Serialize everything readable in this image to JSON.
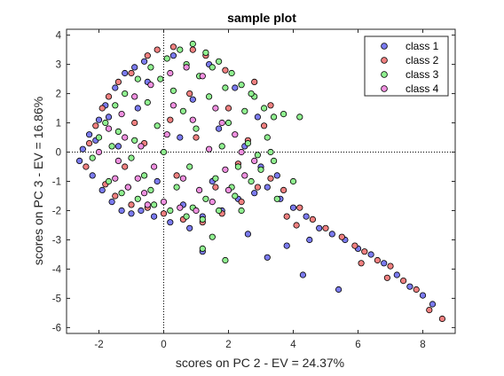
{
  "chart_data": {
    "type": "scatter",
    "title": "sample plot",
    "xlabel": "scores on PC 2 - EV = 24.37%",
    "ylabel": "scores on PC 3 - EV = 16.86%",
    "xlim": [
      -3,
      9
    ],
    "ylim": [
      -6.2,
      4.2
    ],
    "xticks": [
      -2,
      0,
      2,
      4,
      6,
      8
    ],
    "yticks": [
      4,
      3,
      2,
      1,
      0,
      -1,
      -2,
      -3,
      -4,
      -5,
      -6
    ],
    "reference_lines": {
      "x": 0,
      "y": 0,
      "style": "dotted"
    },
    "legend_position": "top-right",
    "series": [
      {
        "name": "class 1",
        "color": "#7b7bf0",
        "points": [
          [
            -2.6,
            -0.3
          ],
          [
            -2.5,
            0.1
          ],
          [
            -2.3,
            0.6
          ],
          [
            -2.2,
            -0.8
          ],
          [
            -2.0,
            1.1
          ],
          [
            -1.8,
            1.6
          ],
          [
            -1.5,
            2.2
          ],
          [
            -1.2,
            2.7
          ],
          [
            -0.9,
            2.9
          ],
          [
            -0.6,
            3.1
          ],
          [
            -1.9,
            -1.3
          ],
          [
            -1.6,
            -1.7
          ],
          [
            -1.3,
            -2.0
          ],
          [
            -1.0,
            -2.1
          ],
          [
            -0.7,
            -2.0
          ],
          [
            -0.3,
            -2.2
          ],
          [
            0.2,
            -2.4
          ],
          [
            0.8,
            -2.6
          ],
          [
            1.2,
            -2.2
          ],
          [
            1.8,
            -2.0
          ],
          [
            2.3,
            -1.6
          ],
          [
            2.8,
            -1.4
          ],
          [
            3.2,
            -1.2
          ],
          [
            3.6,
            -1.6
          ],
          [
            4.0,
            -1.9
          ],
          [
            4.4,
            -2.2
          ],
          [
            4.8,
            -2.6
          ],
          [
            5.2,
            -2.8
          ],
          [
            5.6,
            -3.0
          ],
          [
            6.0,
            -3.3
          ],
          [
            6.4,
            -3.5
          ],
          [
            6.8,
            -3.8
          ],
          [
            7.2,
            -4.2
          ],
          [
            7.6,
            -4.6
          ],
          [
            8.0,
            -4.9
          ],
          [
            8.3,
            -5.2
          ],
          [
            3.8,
            -3.2
          ],
          [
            4.5,
            -3.0
          ],
          [
            5.4,
            -4.7
          ],
          [
            4.3,
            -4.2
          ],
          [
            3.2,
            -3.6
          ],
          [
            1.2,
            -3.4
          ],
          [
            2.6,
            -2.8
          ],
          [
            1.5,
            -1.0
          ],
          [
            0.5,
            0.5
          ],
          [
            -0.8,
            1.5
          ],
          [
            -1.4,
            0.2
          ],
          [
            0.9,
            1.8
          ],
          [
            1.7,
            0.8
          ],
          [
            2.5,
            0.2
          ],
          [
            3.0,
            -0.5
          ],
          [
            -0.2,
            -1.0
          ],
          [
            -1.1,
            -1.2
          ],
          [
            2.2,
            2.2
          ],
          [
            1.4,
            3.0
          ],
          [
            0.3,
            3.3
          ],
          [
            -1.7,
            1.2
          ],
          [
            -2.1,
            0.4
          ],
          [
            3.5,
            -0.8
          ],
          [
            0.6,
            -1.8
          ],
          [
            2.9,
            1.2
          ],
          [
            -0.5,
            2.4
          ]
        ]
      },
      {
        "name": "class 2",
        "color": "#f08080",
        "points": [
          [
            -2.4,
            -0.5
          ],
          [
            -2.3,
            0.3
          ],
          [
            -2.1,
            0.9
          ],
          [
            -1.9,
            1.5
          ],
          [
            -1.7,
            1.9
          ],
          [
            -1.4,
            2.4
          ],
          [
            -1.0,
            2.7
          ],
          [
            -0.5,
            3.3
          ],
          [
            -0.2,
            3.5
          ],
          [
            0.3,
            3.6
          ],
          [
            0.9,
            3.5
          ],
          [
            1.3,
            3.3
          ],
          [
            -1.8,
            -1.1
          ],
          [
            -1.5,
            -1.5
          ],
          [
            -1.0,
            -1.8
          ],
          [
            -0.5,
            -1.9
          ],
          [
            0.0,
            -2.1
          ],
          [
            0.6,
            -2.3
          ],
          [
            1.2,
            -2.4
          ],
          [
            1.8,
            -2.1
          ],
          [
            2.4,
            -1.7
          ],
          [
            2.9,
            -1.2
          ],
          [
            3.3,
            -0.9
          ],
          [
            3.7,
            -1.3
          ],
          [
            4.2,
            -1.9
          ],
          [
            4.6,
            -2.3
          ],
          [
            5.0,
            -2.6
          ],
          [
            5.5,
            -2.9
          ],
          [
            5.9,
            -3.2
          ],
          [
            6.2,
            -3.4
          ],
          [
            6.6,
            -3.7
          ],
          [
            7.0,
            -3.9
          ],
          [
            7.4,
            -4.4
          ],
          [
            7.8,
            -4.7
          ],
          [
            8.2,
            -5.4
          ],
          [
            8.6,
            -5.7
          ],
          [
            6.1,
            -3.8
          ],
          [
            6.9,
            -4.3
          ],
          [
            2.0,
            1.5
          ],
          [
            1.0,
            0.5
          ],
          [
            -0.6,
            0.3
          ],
          [
            0.4,
            -0.8
          ],
          [
            1.6,
            -1.2
          ],
          [
            2.6,
            0.4
          ],
          [
            3.1,
            0.9
          ],
          [
            2.8,
            2.4
          ],
          [
            3.3,
            1.6
          ],
          [
            -1.2,
            -0.5
          ],
          [
            0.8,
            2.0
          ],
          [
            -0.9,
            1.0
          ],
          [
            1.9,
            2.8
          ],
          [
            2.3,
            -0.4
          ],
          [
            3.8,
            -2.2
          ],
          [
            4.1,
            -2.5
          ],
          [
            0.2,
            1.1
          ]
        ]
      },
      {
        "name": "class 3",
        "color": "#8ff08f",
        "points": [
          [
            -2.2,
            -0.2
          ],
          [
            -2.0,
            0.5
          ],
          [
            -1.8,
            1.0
          ],
          [
            -1.5,
            1.6
          ],
          [
            -1.2,
            2.0
          ],
          [
            -0.8,
            2.5
          ],
          [
            -0.4,
            2.9
          ],
          [
            0.1,
            3.2
          ],
          [
            0.5,
            3.5
          ],
          [
            0.9,
            3.7
          ],
          [
            1.3,
            3.4
          ],
          [
            1.7,
            3.1
          ],
          [
            2.1,
            2.7
          ],
          [
            2.4,
            2.3
          ],
          [
            2.8,
            1.9
          ],
          [
            3.1,
            1.5
          ],
          [
            3.4,
            1.2
          ],
          [
            -1.7,
            -1.0
          ],
          [
            -1.3,
            -1.4
          ],
          [
            -0.8,
            -1.6
          ],
          [
            -0.3,
            -1.8
          ],
          [
            0.2,
            -2.0
          ],
          [
            0.7,
            -2.2
          ],
          [
            1.2,
            -2.3
          ],
          [
            1.7,
            -2.0
          ],
          [
            2.2,
            -1.5
          ],
          [
            2.7,
            -1.0
          ],
          [
            3.0,
            -0.6
          ],
          [
            3.4,
            -0.3
          ],
          [
            3.7,
            1.3
          ],
          [
            4.2,
            1.2
          ],
          [
            3.5,
            -1.6
          ],
          [
            4.0,
            -1.0
          ],
          [
            1.2,
            -3.3
          ],
          [
            1.9,
            -3.7
          ],
          [
            1.5,
            -2.9
          ],
          [
            -0.9,
            0.4
          ],
          [
            -0.2,
            0.9
          ],
          [
            0.6,
            1.4
          ],
          [
            1.4,
            1.9
          ],
          [
            2.0,
            1.0
          ],
          [
            2.6,
            0.3
          ],
          [
            0.8,
            -0.5
          ],
          [
            1.6,
            -0.9
          ],
          [
            -0.6,
            -0.8
          ],
          [
            0.0,
            0.0
          ],
          [
            1.0,
            0.8
          ],
          [
            1.8,
            0.2
          ],
          [
            2.3,
            -0.5
          ],
          [
            -1.4,
            0.7
          ],
          [
            -1.0,
            -0.2
          ],
          [
            0.3,
            2.1
          ],
          [
            1.1,
            2.6
          ],
          [
            1.9,
            2.2
          ],
          [
            2.5,
            1.4
          ],
          [
            3.2,
            0.5
          ],
          [
            -0.5,
            1.7
          ],
          [
            0.4,
            -1.2
          ],
          [
            1.3,
            -1.6
          ],
          [
            2.1,
            -1.2
          ],
          [
            2.9,
            -0.1
          ],
          [
            -1.6,
            0.2
          ],
          [
            -0.1,
            2.5
          ],
          [
            0.7,
            3.0
          ],
          [
            1.5,
            2.9
          ],
          [
            2.7,
            2.0
          ],
          [
            3.3,
            0.0
          ],
          [
            2.4,
            -2.0
          ],
          [
            0.9,
            -1.9
          ],
          [
            -0.4,
            -1.3
          ]
        ]
      },
      {
        "name": "class 4",
        "color": "#f090e0",
        "points": [
          [
            -2.0,
            0.0
          ],
          [
            -1.7,
            0.8
          ],
          [
            -1.3,
            1.3
          ],
          [
            -0.9,
            1.9
          ],
          [
            -0.4,
            2.3
          ],
          [
            0.2,
            2.7
          ],
          [
            0.7,
            2.9
          ],
          [
            1.2,
            2.6
          ],
          [
            -1.5,
            -0.9
          ],
          [
            -1.1,
            -1.2
          ],
          [
            -0.6,
            -1.4
          ],
          [
            0.0,
            -1.7
          ],
          [
            0.5,
            -1.9
          ],
          [
            1.0,
            -2.0
          ],
          [
            1.5,
            -1.7
          ],
          [
            2.0,
            -1.3
          ],
          [
            2.5,
            -0.8
          ],
          [
            2.8,
            -0.3
          ],
          [
            -0.7,
            0.2
          ],
          [
            0.1,
            0.6
          ],
          [
            0.9,
            1.1
          ],
          [
            1.6,
            1.5
          ],
          [
            2.2,
            0.6
          ],
          [
            0.6,
            -0.9
          ],
          [
            -0.3,
            -0.5
          ],
          [
            1.4,
            0.1
          ],
          [
            -1.2,
            0.5
          ],
          [
            1.9,
            -0.6
          ],
          [
            0.3,
            1.6
          ],
          [
            -0.8,
            -0.9
          ],
          [
            1.1,
            -1.3
          ],
          [
            2.4,
            0.0
          ],
          [
            -1.4,
            -0.3
          ],
          [
            -0.5,
            -1.8
          ],
          [
            1.8,
            1.0
          ]
        ]
      }
    ]
  },
  "legend": {
    "items": [
      {
        "label": "class 1",
        "color": "#7b7bf0"
      },
      {
        "label": "class 2",
        "color": "#f08080"
      },
      {
        "label": "class 3",
        "color": "#8ff08f"
      },
      {
        "label": "class 4",
        "color": "#f090e0"
      }
    ]
  }
}
